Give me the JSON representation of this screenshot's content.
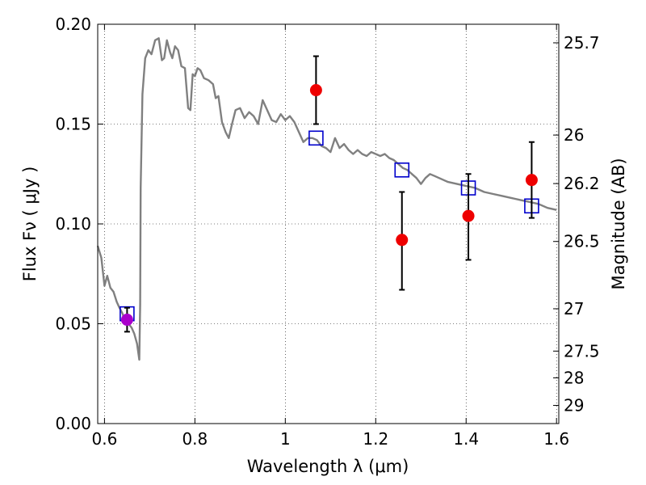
{
  "chart_data": {
    "type": "scatter",
    "xlabel": "Wavelength  λ (μm)",
    "ylabel": "Flux  Fν  ( μJy )",
    "y2label": "Magnitude (AB)",
    "xlim": [
      0.585,
      1.605
    ],
    "ylim": [
      0.0,
      0.2
    ],
    "grid": true,
    "x_ticks": [
      {
        "v": 0.6,
        "label": "0.6"
      },
      {
        "v": 0.8,
        "label": "0.8"
      },
      {
        "v": 1.0,
        "label": "1"
      },
      {
        "v": 1.2,
        "label": "1.2"
      },
      {
        "v": 1.4,
        "label": "1.4"
      },
      {
        "v": 1.6,
        "label": "1.6"
      }
    ],
    "y_ticks": [
      {
        "v": 0.0,
        "label": "0.00"
      },
      {
        "v": 0.05,
        "label": "0.05"
      },
      {
        "v": 0.1,
        "label": "0.10"
      },
      {
        "v": 0.15,
        "label": "0.15"
      },
      {
        "v": 0.2,
        "label": "0.20"
      }
    ],
    "mag_ticks": [
      {
        "label": "25.7",
        "flux": 0.1907
      },
      {
        "label": "26",
        "flux": 0.1445
      },
      {
        "label": "26.2",
        "flux": 0.1202
      },
      {
        "label": "26.5",
        "flux": 0.0912
      },
      {
        "label": "27",
        "flux": 0.0575
      },
      {
        "label": "27.5",
        "flux": 0.0363
      },
      {
        "label": "28",
        "flux": 0.0229
      },
      {
        "label": "29",
        "flux": 0.0091
      }
    ],
    "series": [
      {
        "kind": "line",
        "color": "#808080",
        "points": [
          [
            0.585,
            0.089
          ],
          [
            0.593,
            0.083
          ],
          [
            0.6,
            0.069
          ],
          [
            0.606,
            0.074
          ],
          [
            0.613,
            0.068
          ],
          [
            0.62,
            0.066
          ],
          [
            0.627,
            0.061
          ],
          [
            0.633,
            0.058
          ],
          [
            0.64,
            0.055
          ],
          [
            0.647,
            0.05
          ],
          [
            0.653,
            0.05
          ],
          [
            0.66,
            0.048
          ],
          [
            0.666,
            0.045
          ],
          [
            0.672,
            0.04
          ],
          [
            0.677,
            0.032
          ],
          [
            0.679,
            0.06
          ],
          [
            0.68,
            0.118
          ],
          [
            0.684,
            0.165
          ],
          [
            0.69,
            0.183
          ],
          [
            0.697,
            0.187
          ],
          [
            0.704,
            0.185
          ],
          [
            0.712,
            0.192
          ],
          [
            0.72,
            0.193
          ],
          [
            0.727,
            0.182
          ],
          [
            0.732,
            0.183
          ],
          [
            0.738,
            0.192
          ],
          [
            0.745,
            0.186
          ],
          [
            0.75,
            0.183
          ],
          [
            0.756,
            0.189
          ],
          [
            0.763,
            0.187
          ],
          [
            0.77,
            0.179
          ],
          [
            0.778,
            0.178
          ],
          [
            0.785,
            0.158
          ],
          [
            0.79,
            0.157
          ],
          [
            0.795,
            0.175
          ],
          [
            0.8,
            0.174
          ],
          [
            0.806,
            0.178
          ],
          [
            0.812,
            0.177
          ],
          [
            0.82,
            0.173
          ],
          [
            0.83,
            0.172
          ],
          [
            0.84,
            0.17
          ],
          [
            0.846,
            0.163
          ],
          [
            0.852,
            0.164
          ],
          [
            0.86,
            0.151
          ],
          [
            0.868,
            0.146
          ],
          [
            0.875,
            0.143
          ],
          [
            0.882,
            0.15
          ],
          [
            0.89,
            0.157
          ],
          [
            0.9,
            0.158
          ],
          [
            0.91,
            0.153
          ],
          [
            0.92,
            0.156
          ],
          [
            0.93,
            0.154
          ],
          [
            0.94,
            0.15
          ],
          [
            0.95,
            0.162
          ],
          [
            0.96,
            0.157
          ],
          [
            0.97,
            0.152
          ],
          [
            0.98,
            0.151
          ],
          [
            0.99,
            0.155
          ],
          [
            1.0,
            0.152
          ],
          [
            1.01,
            0.154
          ],
          [
            1.02,
            0.151
          ],
          [
            1.03,
            0.146
          ],
          [
            1.04,
            0.141
          ],
          [
            1.05,
            0.143
          ],
          [
            1.06,
            0.143
          ],
          [
            1.07,
            0.142
          ],
          [
            1.08,
            0.139
          ],
          [
            1.09,
            0.138
          ],
          [
            1.1,
            0.136
          ],
          [
            1.11,
            0.143
          ],
          [
            1.12,
            0.138
          ],
          [
            1.13,
            0.14
          ],
          [
            1.14,
            0.137
          ],
          [
            1.15,
            0.135
          ],
          [
            1.16,
            0.137
          ],
          [
            1.17,
            0.135
          ],
          [
            1.18,
            0.134
          ],
          [
            1.19,
            0.136
          ],
          [
            1.2,
            0.135
          ],
          [
            1.21,
            0.134
          ],
          [
            1.22,
            0.135
          ],
          [
            1.23,
            0.133
          ],
          [
            1.24,
            0.132
          ],
          [
            1.25,
            0.13
          ],
          [
            1.26,
            0.128
          ],
          [
            1.27,
            0.127
          ],
          [
            1.28,
            0.125
          ],
          [
            1.29,
            0.123
          ],
          [
            1.3,
            0.12
          ],
          [
            1.31,
            0.123
          ],
          [
            1.32,
            0.125
          ],
          [
            1.33,
            0.124
          ],
          [
            1.34,
            0.123
          ],
          [
            1.35,
            0.122
          ],
          [
            1.36,
            0.121
          ],
          [
            1.38,
            0.12
          ],
          [
            1.4,
            0.119
          ],
          [
            1.42,
            0.118
          ],
          [
            1.44,
            0.116
          ],
          [
            1.46,
            0.115
          ],
          [
            1.48,
            0.114
          ],
          [
            1.5,
            0.113
          ],
          [
            1.52,
            0.112
          ],
          [
            1.54,
            0.111
          ],
          [
            1.56,
            0.11
          ],
          [
            1.58,
            0.108
          ],
          [
            1.6,
            0.107
          ]
        ]
      },
      {
        "kind": "open-square",
        "color": "#0000cc",
        "points": [
          [
            0.65,
            0.055
          ],
          [
            1.068,
            0.143
          ],
          [
            1.258,
            0.127
          ],
          [
            1.405,
            0.118
          ],
          [
            1.545,
            0.109
          ]
        ]
      },
      {
        "kind": "errorbar",
        "color": "#000000",
        "points": [
          {
            "x": 0.65,
            "lo": 0.046,
            "hi": 0.058
          },
          {
            "x": 1.068,
            "lo": 0.15,
            "hi": 0.184
          },
          {
            "x": 1.258,
            "lo": 0.067,
            "hi": 0.116
          },
          {
            "x": 1.405,
            "lo": 0.082,
            "hi": 0.125
          },
          {
            "x": 1.545,
            "lo": 0.103,
            "hi": 0.141
          }
        ]
      },
      {
        "kind": "filled-circle",
        "color": "#ee0000",
        "points": [
          [
            1.068,
            0.167
          ],
          [
            1.258,
            0.092
          ],
          [
            1.405,
            0.104
          ],
          [
            1.545,
            0.122
          ]
        ]
      },
      {
        "kind": "filled-circle",
        "color": "#aa00cc",
        "points": [
          [
            0.65,
            0.052
          ]
        ]
      }
    ]
  }
}
